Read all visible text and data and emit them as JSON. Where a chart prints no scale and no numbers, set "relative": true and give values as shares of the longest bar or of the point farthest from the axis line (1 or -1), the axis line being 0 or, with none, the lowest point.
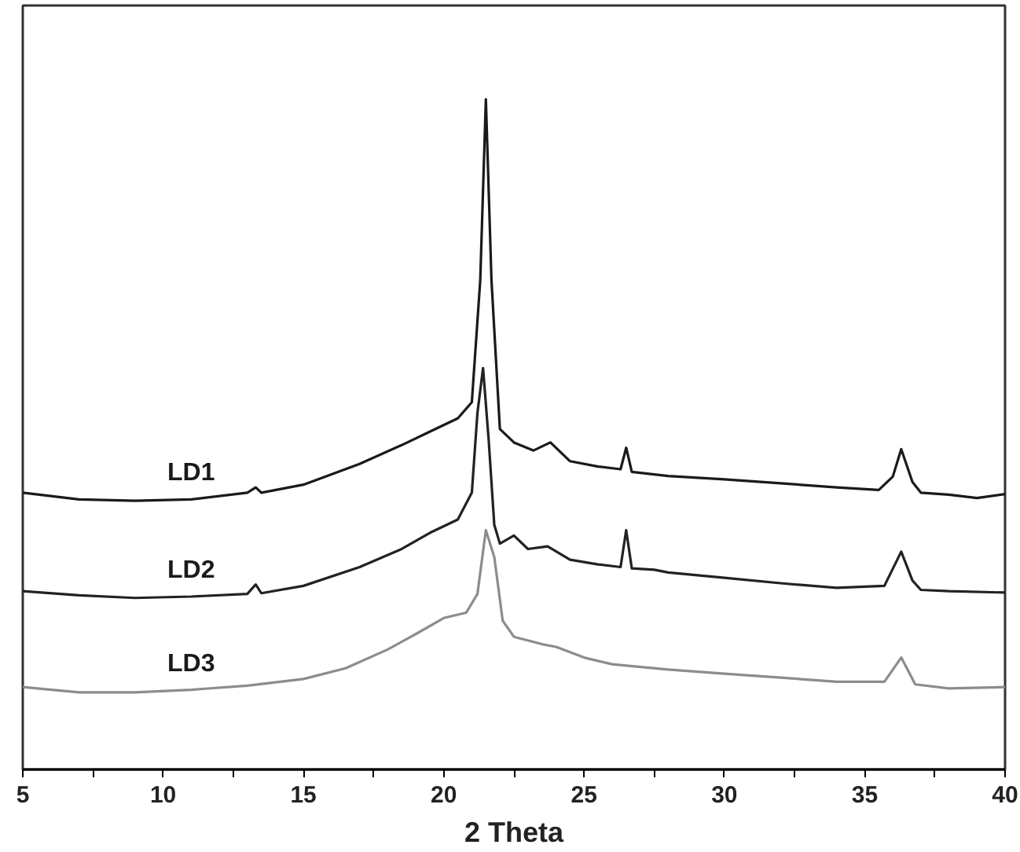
{
  "chart_data": {
    "type": "line",
    "relative": true,
    "xlabel": "2 Theta",
    "xlim": [
      5,
      40
    ],
    "xticks": [
      5,
      {
        "value": 7.5,
        "label": null
      },
      10,
      {
        "value": 12.5,
        "label": null
      },
      15,
      {
        "value": 17.5,
        "label": null
      },
      20,
      {
        "value": 22.5,
        "label": null
      },
      25,
      {
        "value": 27.5,
        "label": null
      },
      30,
      {
        "value": 32.5,
        "label": null
      },
      35,
      {
        "value": 37.5,
        "label": null
      },
      40
    ],
    "grid": false,
    "marker": "none",
    "line_style": "solid",
    "series": [
      {
        "name": "LD1",
        "color": "#1a1a1a",
        "x": [
          5,
          7,
          9,
          11,
          13,
          13.3,
          13.5,
          15,
          17,
          18.5,
          19.5,
          20.5,
          21,
          21.3,
          21.5,
          21.7,
          22,
          22.5,
          23.2,
          23.8,
          24.5,
          25.5,
          26.3,
          26.5,
          26.7,
          28,
          30,
          32,
          34,
          35.5,
          36,
          36.3,
          36.7,
          37,
          38,
          39,
          40
        ],
        "values": [
          0.413,
          0.403,
          0.401,
          0.403,
          0.413,
          0.421,
          0.413,
          0.425,
          0.456,
          0.484,
          0.504,
          0.524,
          0.548,
          0.73,
          1.0,
          0.73,
          0.508,
          0.488,
          0.476,
          0.488,
          0.46,
          0.452,
          0.448,
          0.48,
          0.444,
          0.438,
          0.433,
          0.427,
          0.421,
          0.417,
          0.437,
          0.478,
          0.429,
          0.413,
          0.41,
          0.405,
          0.411
        ]
      },
      {
        "name": "LD2",
        "color": "#222222",
        "x": [
          5,
          7,
          9,
          11,
          13,
          13.3,
          13.5,
          15,
          17,
          18.5,
          19.5,
          20.5,
          21,
          21.2,
          21.4,
          21.6,
          21.8,
          22,
          22.5,
          23,
          23.7,
          24.5,
          25.5,
          26.3,
          26.5,
          26.7,
          27.5,
          28,
          30,
          32,
          34,
          35.7,
          36.3,
          36.7,
          37,
          38,
          40
        ],
        "values": [
          0.266,
          0.26,
          0.256,
          0.258,
          0.262,
          0.276,
          0.263,
          0.274,
          0.302,
          0.329,
          0.353,
          0.373,
          0.413,
          0.532,
          0.599,
          0.492,
          0.365,
          0.337,
          0.349,
          0.329,
          0.333,
          0.313,
          0.306,
          0.302,
          0.357,
          0.3,
          0.298,
          0.294,
          0.286,
          0.278,
          0.271,
          0.274,
          0.325,
          0.282,
          0.268,
          0.266,
          0.264
        ]
      },
      {
        "name": "LD3",
        "color": "#8c8c8c",
        "x": [
          5,
          7,
          9,
          11,
          13,
          15,
          16.5,
          18,
          19,
          20,
          20.8,
          21.2,
          21.5,
          21.8,
          22.1,
          22.5,
          23.5,
          24,
          25,
          26,
          28,
          30,
          32,
          34,
          35.7,
          36.3,
          36.8,
          38,
          40
        ],
        "values": [
          0.123,
          0.115,
          0.115,
          0.119,
          0.125,
          0.135,
          0.151,
          0.179,
          0.202,
          0.226,
          0.234,
          0.262,
          0.357,
          0.317,
          0.222,
          0.198,
          0.187,
          0.183,
          0.167,
          0.157,
          0.149,
          0.143,
          0.137,
          0.131,
          0.131,
          0.167,
          0.127,
          0.121,
          0.123
        ]
      }
    ]
  }
}
